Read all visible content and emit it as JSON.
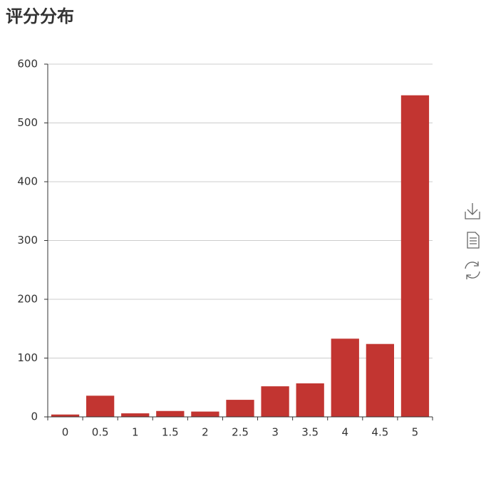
{
  "chart_data": {
    "type": "bar",
    "title": "评分分布",
    "categories": [
      "0",
      "0.5",
      "1",
      "1.5",
      "2",
      "2.5",
      "3",
      "3.5",
      "4",
      "4.5",
      "5"
    ],
    "values": [
      4,
      36,
      6,
      10,
      9,
      29,
      52,
      57,
      133,
      124,
      547
    ],
    "color": "#c23531",
    "ylim": [
      0,
      600
    ],
    "yticks": [
      0,
      100,
      200,
      300,
      400,
      500,
      600
    ],
    "grid": true
  }
}
